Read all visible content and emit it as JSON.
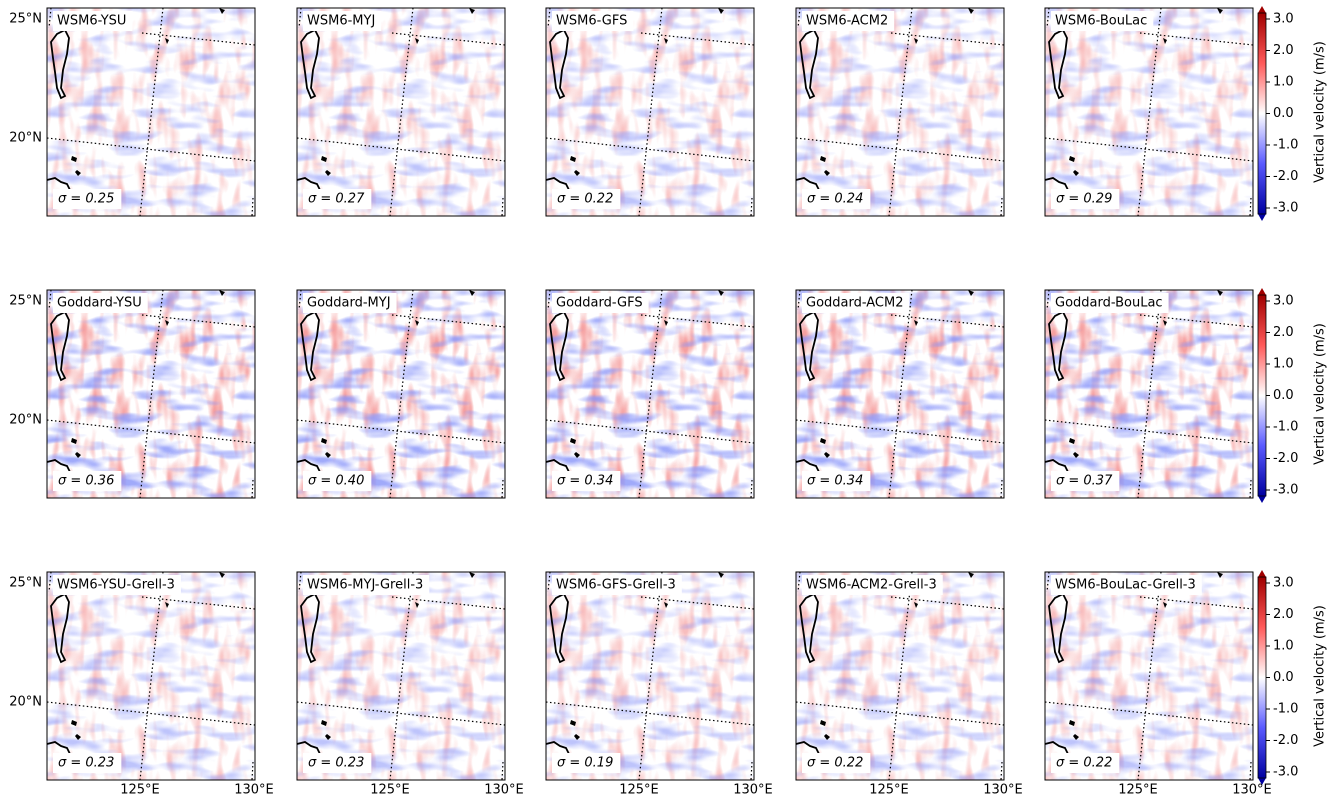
{
  "axes": {
    "lat_labels": [
      "25°N",
      "20°N"
    ],
    "lon_labels": [
      "125°E",
      "130°E"
    ]
  },
  "colorbar": {
    "label": "Vertical velocity (m/s)",
    "ticks": [
      "3.0",
      "2.0",
      "1.0",
      "0.0",
      "-1.0",
      "-2.0",
      "-3.0"
    ]
  },
  "rows": [
    [
      {
        "name": "WSM6-YSU",
        "sigma": "σ = 0.25"
      },
      {
        "name": "WSM6-MYJ",
        "sigma": "σ = 0.27"
      },
      {
        "name": "WSM6-GFS",
        "sigma": "σ = 0.22"
      },
      {
        "name": "WSM6-ACM2",
        "sigma": "σ = 0.24"
      },
      {
        "name": "WSM6-BouLac",
        "sigma": "σ = 0.29"
      }
    ],
    [
      {
        "name": "Goddard-YSU",
        "sigma": "σ = 0.36"
      },
      {
        "name": "Goddard-MYJ",
        "sigma": "σ = 0.40"
      },
      {
        "name": "Goddard-GFS",
        "sigma": "σ = 0.34"
      },
      {
        "name": "Goddard-ACM2",
        "sigma": "σ = 0.34"
      },
      {
        "name": "Goddard-BouLac",
        "sigma": "σ = 0.37"
      }
    ],
    [
      {
        "name": "WSM6-YSU-Grell-3",
        "sigma": "σ = 0.23"
      },
      {
        "name": "WSM6-MYJ-Grell-3",
        "sigma": "σ = 0.23"
      },
      {
        "name": "WSM6-GFS-Grell-3",
        "sigma": "σ = 0.19"
      },
      {
        "name": "WSM6-ACM2-Grell-3",
        "sigma": "σ = 0.22"
      },
      {
        "name": "WSM6-BouLac-Grell-3",
        "sigma": "σ = 0.22"
      }
    ]
  ]
}
